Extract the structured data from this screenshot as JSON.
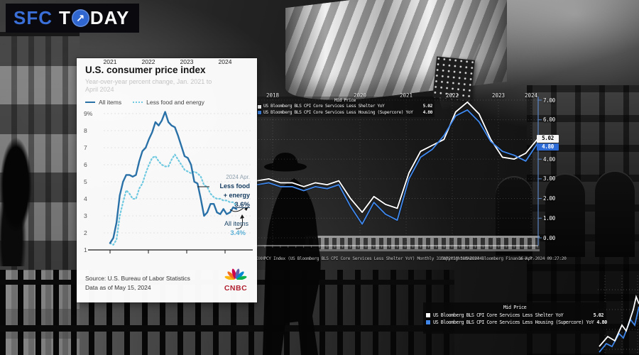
{
  "logo": {
    "sfc": "SFC",
    "t": "T",
    "day": "DAY",
    "arrow_glyph": "↗",
    "accent_blue": "#2f66d0"
  },
  "cnbc": {
    "title": "U.S. consumer price index",
    "subtitle_line1": "Year-over-year percent change,",
    "subtitle_range1": "Jan. 2021 to",
    "subtitle_line2": "April 2024",
    "legend": [
      {
        "label": "All items",
        "color": "#2a71a8",
        "style": "solid"
      },
      {
        "label": "Less food and energy",
        "color": "#6fc9e0",
        "style": "dotted"
      }
    ],
    "y_tick_labels": [
      "9%",
      "8",
      "7",
      "6",
      "5",
      "4",
      "3",
      "2",
      "1"
    ],
    "x_tick_labels": [
      "2021",
      "2022",
      "2023",
      "2024"
    ],
    "annotation": {
      "date": "2024 Apr.",
      "core_label_line1": "Less food",
      "core_label_line2": "+ energy",
      "core_value": "3.6%",
      "all_label": "All items",
      "all_value": "3.4%"
    },
    "source_line1": "Source: U.S. Bureau of Labor Statistics",
    "source_line2": "Data as of May 15, 2024",
    "wordmark": "CNBC"
  },
  "bloomberg": {
    "legend_title": "Mid Price",
    "series": [
      {
        "label": "US Bloomberg BLS CPI Core Services Less Shelter YoY",
        "value": "5.02",
        "color": "#ffffff"
      },
      {
        "label": "US Bloomberg BLS CPI Core Services Less Housing (Supercore) YoY",
        "value": "4.80",
        "color": "#3f86e8"
      }
    ],
    "y_tick_labels": [
      "7.00",
      "6.00",
      "5.00",
      "4.00",
      "3.00",
      "2.00",
      "1.00",
      "0.00"
    ],
    "x_tick_labels": [
      "2018",
      "2020",
      "2021",
      "2022",
      "2023",
      "2024"
    ],
    "footer_left": "CDXHPCY Index (US Bloomberg BLS CPI Core Services Less Shelter YoY)  Monthly 31MAR2018-31MAR2024",
    "footer_mid": "Copyrighted 2024 Bloomberg Finance L.P.",
    "footer_right": "16-Apr-2024 09:27:20"
  },
  "chart_data": [
    {
      "type": "line",
      "title": "U.S. consumer price index",
      "subtitle": "Year-over-year percent change, Jan. 2021 to April 2024",
      "x_start": "2021-01",
      "x_end": "2024-04",
      "frequency": "monthly",
      "ylim": [
        1,
        9
      ],
      "y_tick_labels": [
        "9%",
        "8",
        "7",
        "6",
        "5",
        "4",
        "3",
        "2",
        "1"
      ],
      "x_tick_labels": [
        "2021",
        "2022",
        "2023",
        "2024"
      ],
      "grid": "horizontal-dashed",
      "legend_position": "top-left",
      "series": [
        {
          "name": "All items",
          "color": "#2a71a8",
          "last_label": "3.4%",
          "values": [
            1.4,
            1.7,
            2.6,
            4.2,
            5.0,
            5.4,
            5.4,
            5.3,
            5.4,
            6.2,
            6.8,
            7.0,
            7.5,
            7.9,
            8.5,
            8.3,
            8.6,
            9.1,
            8.5,
            8.3,
            8.2,
            7.7,
            7.1,
            6.5,
            6.4,
            6.0,
            5.0,
            4.9,
            4.0,
            3.0,
            3.2,
            3.7,
            3.7,
            3.2,
            3.1,
            3.4,
            3.1,
            3.2,
            3.5,
            3.4
          ]
        },
        {
          "name": "Less food and energy",
          "color": "#6fc9e0",
          "last_label": "3.6%",
          "values": [
            1.4,
            1.3,
            1.6,
            3.0,
            3.8,
            4.5,
            4.3,
            4.0,
            4.0,
            4.6,
            4.9,
            5.5,
            6.0,
            6.4,
            6.5,
            6.2,
            6.0,
            5.9,
            5.9,
            6.3,
            6.6,
            6.3,
            6.0,
            5.7,
            5.6,
            5.5,
            5.6,
            5.5,
            5.3,
            4.8,
            4.7,
            4.3,
            4.1,
            4.0,
            4.0,
            3.9,
            3.9,
            3.8,
            3.8,
            3.6
          ]
        }
      ],
      "source": "Source: U.S. Bureau of Labor Statistics",
      "as_of": "Data as of May 15, 2024"
    },
    {
      "type": "line",
      "title": "Mid Price",
      "x_start": "2018-03",
      "x_end": "2024-03",
      "frequency": "quarterly (estimated from monthly terminal chart)",
      "ylim": [
        0,
        7
      ],
      "y_tick_labels": [
        "7.00",
        "6.00",
        "5.00",
        "4.00",
        "3.00",
        "2.00",
        "1.00",
        "0.00"
      ],
      "x_tick_labels": [
        "2018",
        "2020",
        "2021",
        "2022",
        "2023",
        "2024"
      ],
      "grid": "dotted",
      "legend_position": "top",
      "series": [
        {
          "name": "US Bloomberg BLS CPI Core Services Less Shelter YoY",
          "color": "#ffffff",
          "last_value": 5.02,
          "values": [
            2.9,
            3.0,
            2.8,
            2.8,
            2.6,
            2.8,
            2.7,
            2.9,
            2.0,
            1.3,
            2.1,
            1.7,
            1.5,
            3.3,
            4.4,
            4.7,
            5.0,
            6.4,
            6.9,
            6.3,
            5.0,
            4.1,
            4.0,
            4.3,
            5.02
          ]
        },
        {
          "name": "US Bloomberg BLS CPI Core Services Less Housing (Supercore) YoY",
          "color": "#3f86e8",
          "last_value": 4.8,
          "values": [
            2.7,
            2.8,
            2.6,
            2.6,
            2.4,
            2.6,
            2.5,
            2.7,
            1.6,
            0.7,
            1.8,
            1.2,
            0.9,
            3.0,
            4.1,
            4.5,
            5.2,
            6.2,
            6.5,
            5.9,
            4.9,
            4.4,
            4.2,
            3.9,
            4.8
          ]
        }
      ],
      "footer": "CDXHPCY Index (US Bloomberg BLS CPI Core Services Less Shelter YoY)  Monthly 31MAR2018-31MAR2024  Copyrighted 2024 Bloomberg Finance L.P.  16-Apr-2024 09:27:20"
    }
  ]
}
